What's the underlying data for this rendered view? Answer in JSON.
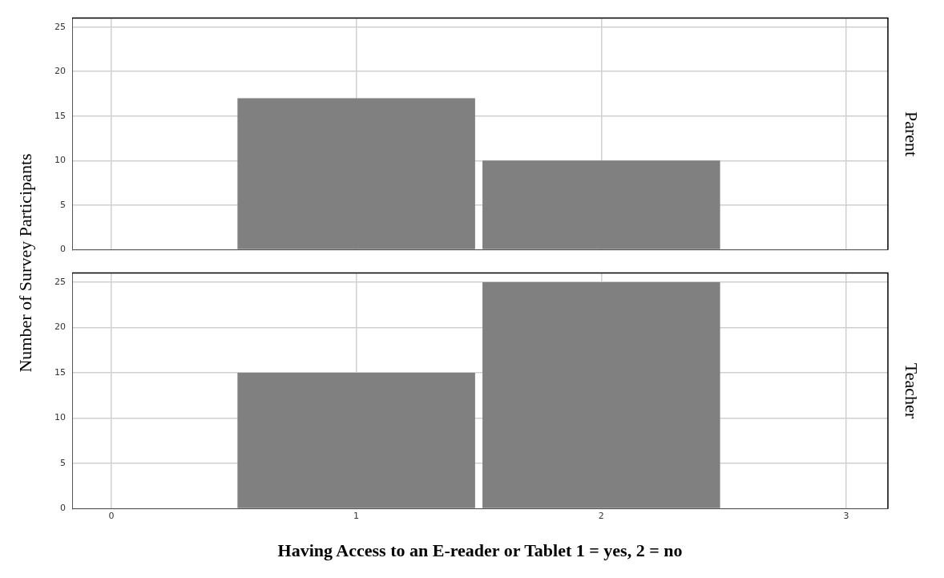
{
  "chart_data": [
    {
      "type": "histogram",
      "annotations": [
        "Parent"
      ],
      "ylabel": "Number of Survey Participants",
      "bins": [
        0.5,
        1.5,
        2.5
      ],
      "values": [
        17,
        10
      ],
      "color": "#808080",
      "xlim": [
        -0.16,
        3.17
      ],
      "xticks": [
        0,
        1,
        2,
        3
      ],
      "ylim": [
        0,
        26
      ],
      "yticks": [
        0,
        5,
        10,
        15,
        20,
        25
      ],
      "grid": true,
      "tick_labels": "y"
    },
    {
      "type": "histogram",
      "annotations": [
        "Teacher"
      ],
      "xlabel": "Having Access to an E-reader or Tablet 1 = yes, 2 = no",
      "bins": [
        0.5,
        1.5,
        2.5
      ],
      "values": [
        15,
        25
      ],
      "color": "#808080",
      "xlim": [
        -0.16,
        3.17
      ],
      "xticks": [
        0,
        1,
        2,
        3
      ],
      "ylim": [
        0,
        26
      ],
      "yticks": [
        0,
        5,
        10,
        15,
        20,
        25
      ],
      "grid": true
    }
  ]
}
